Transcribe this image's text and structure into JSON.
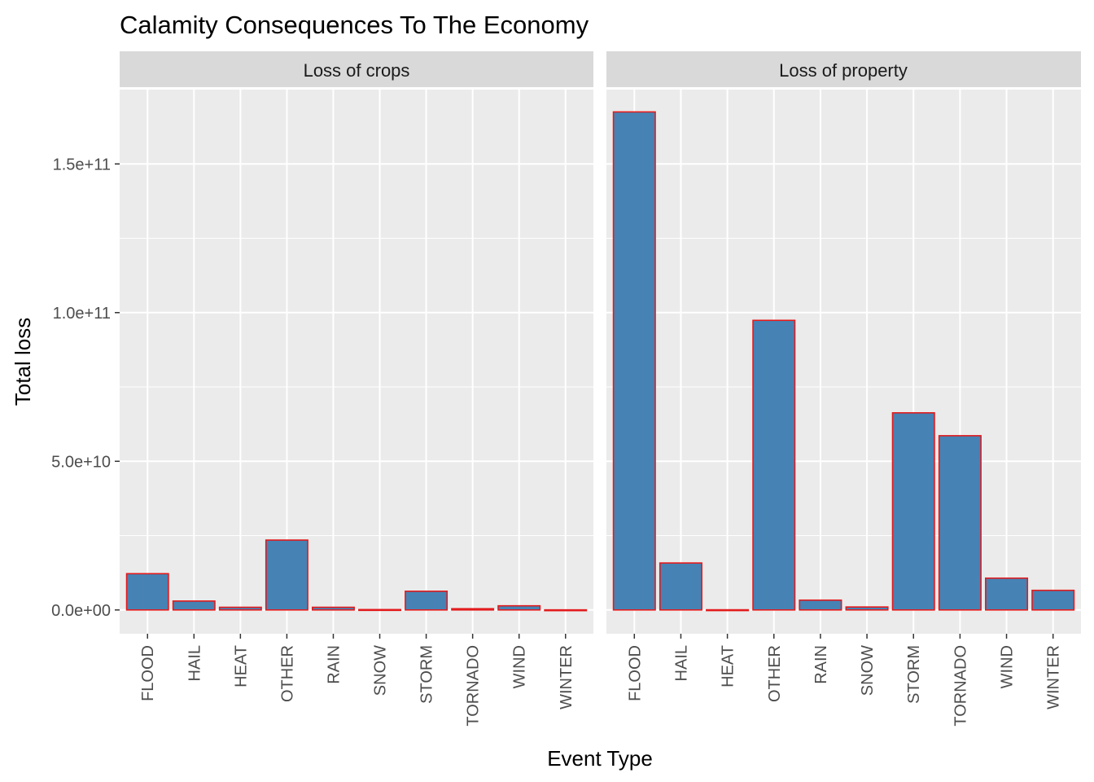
{
  "chart_data": {
    "type": "bar",
    "title": "Calamity Consequences To The Economy",
    "xlabel": "Event Type",
    "ylabel": "Total loss",
    "ylim": [
      -8000000000.0,
      175000000000.0
    ],
    "yticks": [
      0,
      50000000000.0,
      100000000000.0,
      150000000000.0
    ],
    "ytick_labels": [
      "0.0e+00",
      "5.0e+10",
      "1.0e+11",
      "1.5e+11"
    ],
    "categories": [
      "FLOOD",
      "HAIL",
      "HEAT",
      "OTHER",
      "RAIN",
      "SNOW",
      "STORM",
      "TORNADO",
      "WIND",
      "WINTER"
    ],
    "grid": true,
    "bar_fill": "#4682B4",
    "bar_outline": "#E31A1C",
    "panel_background": "#EBEBEB",
    "strip_background": "#D9D9D9",
    "grid_color": "#FFFFFF",
    "facets": [
      {
        "label": "Loss of crops",
        "values": [
          12200000000.0,
          3000000000.0,
          900000000.0,
          23500000000.0,
          900000000.0,
          130000000.0,
          6300000000.0,
          420000000.0,
          1400000000.0,
          40000000.0
        ]
      },
      {
        "label": "Loss of property",
        "values": [
          167500000000.0,
          15800000000.0,
          60000000.0,
          97400000000.0,
          3300000000.0,
          1000000000.0,
          66300000000.0,
          58600000000.0,
          10700000000.0,
          6600000000.0
        ]
      }
    ]
  }
}
